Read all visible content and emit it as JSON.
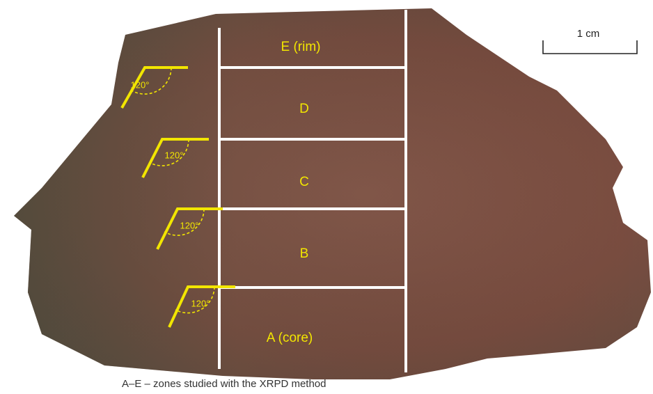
{
  "zones": [
    "E (rim)",
    "D",
    "C",
    "B",
    "A (core)"
  ],
  "angles": [
    "120°",
    "120°",
    "120°",
    "120°"
  ],
  "scale_bar": "1 cm",
  "caption": "A–E – zones studied with the XRPD method"
}
